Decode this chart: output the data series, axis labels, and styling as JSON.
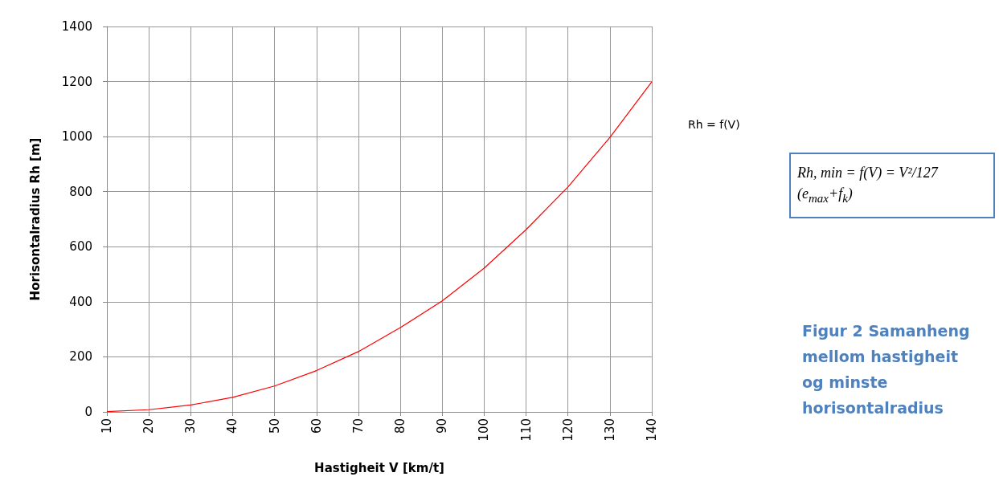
{
  "chart_data": {
    "type": "line",
    "xlabel": "Hastigheit V [km/t]",
    "ylabel": "Horisontalradius Rh [m]",
    "x": [
      10,
      20,
      30,
      40,
      50,
      60,
      70,
      80,
      90,
      100,
      110,
      120,
      130,
      140
    ],
    "series": [
      {
        "name": "Rh = f(V)",
        "color": "#ff0000",
        "values": [
          1,
          8,
          25,
          53,
          94,
          150,
          219,
          306,
          403,
          522,
          662,
          817,
          997,
          1199
        ]
      }
    ],
    "xlim": [
      10,
      140
    ],
    "xticks": [
      10,
      20,
      30,
      40,
      50,
      60,
      70,
      80,
      90,
      100,
      110,
      120,
      130,
      140
    ],
    "ylim": [
      0,
      1400
    ],
    "yticks": [
      0,
      200,
      400,
      600,
      800,
      1000,
      1200,
      1400
    ],
    "grid": true,
    "legend": "right",
    "marker": "none",
    "line_style": "solid",
    "annotations": [
      "Rh, min = f(V) = V²/127 (e$_{max}$+f$_{k}$)",
      "Figur 2 Samanheng mellom hastigheit og minste horisontalradius"
    ]
  }
}
